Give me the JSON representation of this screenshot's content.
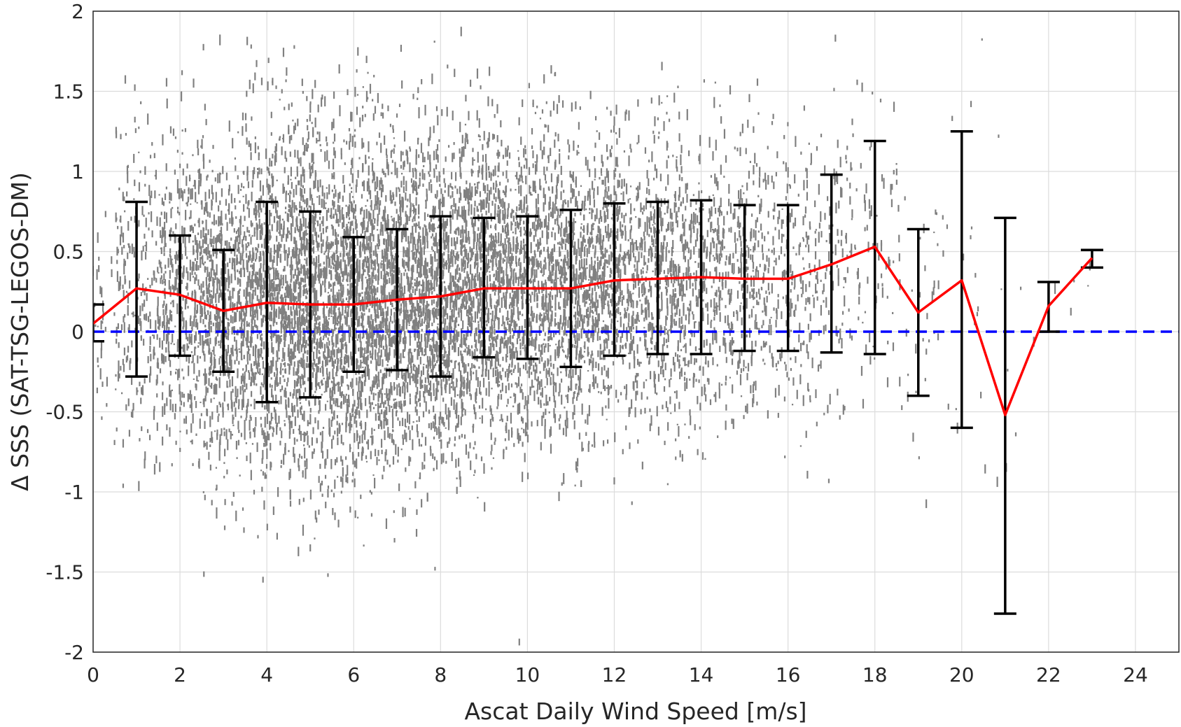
{
  "chart_data": {
    "type": "scatter",
    "title": "",
    "xlabel": "Ascat Daily Wind Speed [m/s]",
    "ylabel": "Δ SSS (SAT-TSG-LEGOS-DM)",
    "xlim": [
      0,
      25
    ],
    "ylim": [
      -2,
      2
    ],
    "xticks": [
      0,
      2,
      4,
      6,
      8,
      10,
      12,
      14,
      16,
      18,
      20,
      22,
      24
    ],
    "yticks": [
      2,
      1.5,
      1,
      0.5,
      0,
      -0.5,
      -1,
      -1.5,
      -2
    ],
    "grid": true,
    "legend": "none",
    "reference_line": {
      "y": 0,
      "style": "dashed",
      "color": "#0000ff"
    },
    "scatter_color": "#808080",
    "mean_line_color": "#ff0000",
    "errorbar_color": "#000000",
    "series": [
      {
        "type": "scatter",
        "description_points": "dense cloud of individual matchups",
        "bins": [
          {
            "x": 0,
            "center": 0.1,
            "spread": 0.35,
            "n": 60
          },
          {
            "x": 1,
            "center": 0.25,
            "spread": 0.5,
            "n": 220
          },
          {
            "x": 2,
            "center": 0.22,
            "spread": 0.5,
            "n": 420
          },
          {
            "x": 3,
            "center": 0.15,
            "spread": 0.5,
            "n": 600
          },
          {
            "x": 4,
            "center": 0.18,
            "spread": 0.55,
            "n": 780
          },
          {
            "x": 5,
            "center": 0.18,
            "spread": 0.55,
            "n": 880
          },
          {
            "x": 6,
            "center": 0.18,
            "spread": 0.52,
            "n": 900
          },
          {
            "x": 7,
            "center": 0.2,
            "spread": 0.5,
            "n": 880
          },
          {
            "x": 8,
            "center": 0.22,
            "spread": 0.5,
            "n": 820
          },
          {
            "x": 9,
            "center": 0.27,
            "spread": 0.48,
            "n": 760
          },
          {
            "x": 10,
            "center": 0.27,
            "spread": 0.46,
            "n": 680
          },
          {
            "x": 11,
            "center": 0.27,
            "spread": 0.46,
            "n": 600
          },
          {
            "x": 12,
            "center": 0.32,
            "spread": 0.45,
            "n": 500
          },
          {
            "x": 13,
            "center": 0.33,
            "spread": 0.44,
            "n": 420
          },
          {
            "x": 14,
            "center": 0.34,
            "spread": 0.44,
            "n": 340
          },
          {
            "x": 15,
            "center": 0.33,
            "spread": 0.42,
            "n": 260
          },
          {
            "x": 16,
            "center": 0.33,
            "spread": 0.42,
            "n": 190
          },
          {
            "x": 17,
            "center": 0.42,
            "spread": 0.45,
            "n": 120
          },
          {
            "x": 18,
            "center": 0.53,
            "spread": 0.5,
            "n": 70
          },
          {
            "x": 19,
            "center": 0.12,
            "spread": 0.45,
            "n": 35
          },
          {
            "x": 20,
            "center": 0.32,
            "spread": 0.6,
            "n": 18
          },
          {
            "x": 21,
            "center": -0.52,
            "spread": 0.8,
            "n": 8
          },
          {
            "x": 22,
            "center": 0.15,
            "spread": 0.2,
            "n": 3
          },
          {
            "x": 23,
            "center": 0.45,
            "spread": 0.1,
            "n": 3
          }
        ]
      },
      {
        "type": "line",
        "x": [
          0,
          1,
          2,
          3,
          4,
          5,
          6,
          7,
          8,
          9,
          10,
          11,
          12,
          13,
          14,
          15,
          16,
          17,
          18,
          19,
          20,
          21,
          22,
          23
        ],
        "values": [
          0.05,
          0.27,
          0.23,
          0.13,
          0.18,
          0.17,
          0.17,
          0.2,
          0.22,
          0.27,
          0.27,
          0.27,
          0.32,
          0.33,
          0.34,
          0.33,
          0.33,
          0.42,
          0.53,
          0.12,
          0.32,
          -0.52,
          0.16,
          0.46
        ]
      },
      {
        "type": "errorbar",
        "x": [
          0,
          1,
          2,
          3,
          4,
          5,
          6,
          7,
          8,
          9,
          10,
          11,
          12,
          13,
          14,
          15,
          16,
          17,
          18,
          19,
          20,
          21,
          22,
          23
        ],
        "upper": [
          0.17,
          0.81,
          0.6,
          0.51,
          0.81,
          0.75,
          0.59,
          0.64,
          0.72,
          0.71,
          0.72,
          0.76,
          0.8,
          0.81,
          0.82,
          0.79,
          0.79,
          0.98,
          1.19,
          0.64,
          1.25,
          0.71,
          0.31,
          0.51
        ],
        "lower": [
          -0.06,
          -0.28,
          -0.15,
          -0.25,
          -0.44,
          -0.41,
          -0.25,
          -0.24,
          -0.28,
          -0.16,
          -0.17,
          -0.22,
          -0.15,
          -0.14,
          -0.14,
          -0.12,
          -0.12,
          -0.13,
          -0.14,
          -0.4,
          -0.6,
          -1.76,
          0.0,
          0.4
        ]
      }
    ]
  }
}
